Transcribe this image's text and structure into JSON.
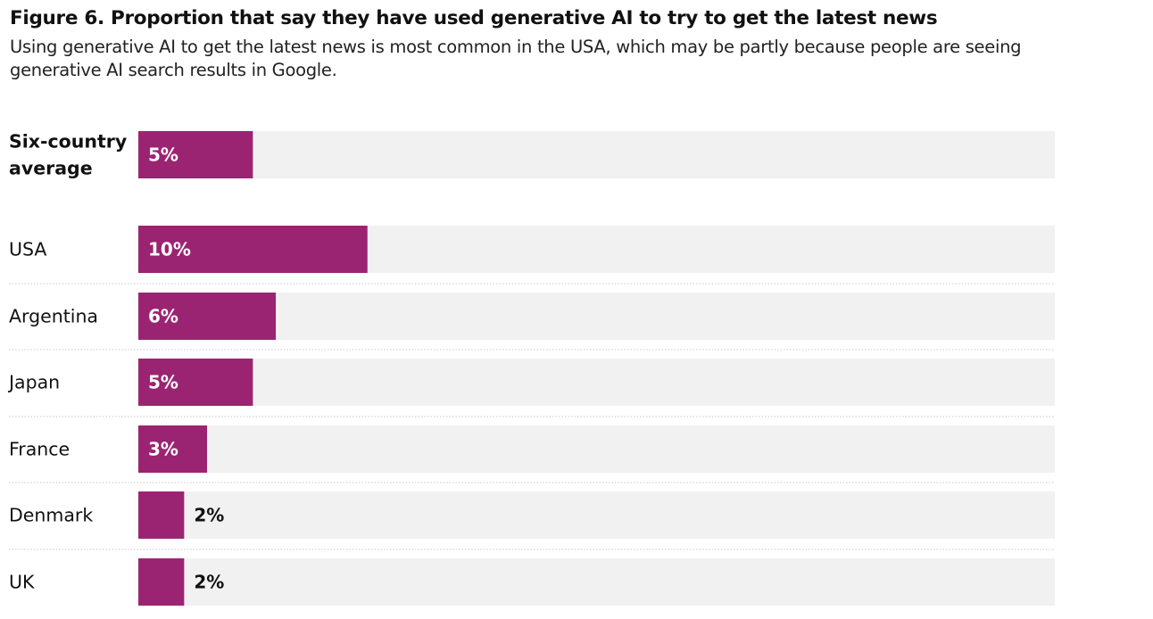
{
  "chart_data": {
    "type": "bar",
    "orientation": "horizontal",
    "title": "Figure 6. Proportion that say they have used generative AI to try to get the latest news",
    "subtitle": "Using generative AI to get the latest news is most common in the USA, which may be partly because people are seeing generative AI search results in Google.",
    "categories": [
      "Six-country average",
      "USA",
      "Argentina",
      "Japan",
      "France",
      "Denmark",
      "UK"
    ],
    "category_lines": [
      [
        "Six-country",
        "average"
      ],
      [
        "USA"
      ],
      [
        "Argentina"
      ],
      [
        "Japan"
      ],
      [
        "France"
      ],
      [
        "Denmark"
      ],
      [
        "UK"
      ]
    ],
    "highlight_first_category": true,
    "values": [
      5,
      10,
      6,
      5,
      3,
      2,
      2
    ],
    "value_labels": [
      "5%",
      "10%",
      "6%",
      "5%",
      "3%",
      "2%",
      "2%"
    ],
    "unit": "%",
    "xlim": [
      0,
      40
    ],
    "grid": false,
    "colors": {
      "bar": "#9b2472",
      "track": "#f2f1f1",
      "label_inside": "#ffffff",
      "label_outside": "#111111",
      "divider": "#c8c8c8"
    }
  }
}
